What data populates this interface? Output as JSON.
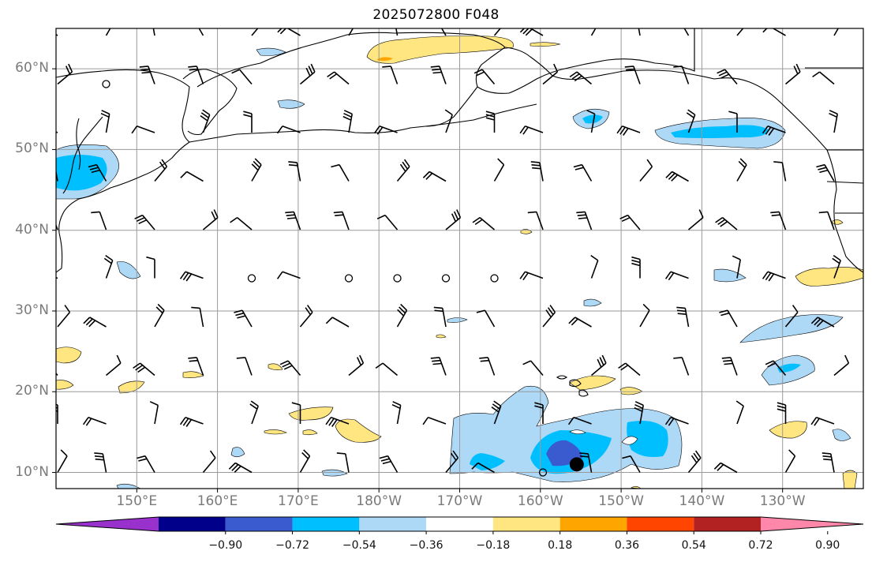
{
  "title": "2025072800 F048",
  "map": {
    "lat_ticks": [
      {
        "label": "60°N",
        "lat": 60
      },
      {
        "label": "50°N",
        "lat": 50
      },
      {
        "label": "40°N",
        "lat": 40
      },
      {
        "label": "30°N",
        "lat": 30
      },
      {
        "label": "20°N",
        "lat": 20
      },
      {
        "label": "10°N",
        "lat": 10
      }
    ],
    "lon_ticks": [
      {
        "label": "150°E",
        "lon": 150
      },
      {
        "label": "160°E",
        "lon": 160
      },
      {
        "label": "170°E",
        "lon": 170
      },
      {
        "label": "180°W",
        "lon": 180
      },
      {
        "label": "170°W",
        "lon": 190
      },
      {
        "label": "160°W",
        "lon": 200
      },
      {
        "label": "150°W",
        "lon": 210
      },
      {
        "label": "140°W",
        "lon": 220
      },
      {
        "label": "130°W",
        "lon": 230
      }
    ],
    "extent": {
      "lon_min": 140,
      "lon_max": 240,
      "lat_min": 8,
      "lat_max": 65
    },
    "marker": {
      "lon": 204.5,
      "lat": 11,
      "color": "#000000"
    }
  },
  "colorbar": {
    "labels": [
      "−0.90",
      "−0.72",
      "−0.54",
      "−0.36",
      "−0.18",
      "0.18",
      "0.36",
      "0.54",
      "0.72",
      "0.90"
    ],
    "colors": [
      "#9932cc",
      "#00008b",
      "#3a5bcf",
      "#00bfff",
      "#add8f6",
      "#ffffff",
      "#ffe680",
      "#ffa500",
      "#ff4500",
      "#b22222",
      "#ff88aa"
    ]
  }
}
